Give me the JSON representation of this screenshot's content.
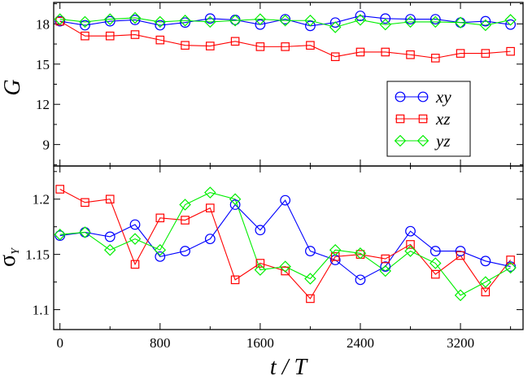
{
  "chart_data": [
    {
      "type": "line",
      "panel": "top",
      "ylabel": "G",
      "xlim": [
        -50,
        3700
      ],
      "ylim": [
        7.4,
        19.6
      ],
      "xticks": [
        0,
        800,
        1600,
        2400,
        3200
      ],
      "yticks": [
        9,
        12,
        15,
        18
      ],
      "x": [
        0,
        200,
        400,
        600,
        800,
        1000,
        1200,
        1400,
        1600,
        1800,
        2000,
        2200,
        2400,
        2600,
        2800,
        3000,
        3200,
        3400,
        3600
      ],
      "series": [
        {
          "name": "xy",
          "color": "#0000ff",
          "marker": "circle",
          "values": [
            18.2,
            17.9,
            18.2,
            18.3,
            17.9,
            18.1,
            18.4,
            18.3,
            17.95,
            18.35,
            17.85,
            18.1,
            18.6,
            18.4,
            18.35,
            18.35,
            18.1,
            18.2,
            17.95
          ]
        },
        {
          "name": "xz",
          "color": "#ff0000",
          "marker": "square",
          "values": [
            18.2,
            17.1,
            17.1,
            17.2,
            16.8,
            16.4,
            16.35,
            16.7,
            16.3,
            16.3,
            16.4,
            15.55,
            15.9,
            15.9,
            15.7,
            15.45,
            15.8,
            15.8,
            15.95
          ]
        },
        {
          "name": "yz",
          "color": "#00ee00",
          "marker": "diamond",
          "values": [
            18.35,
            18.15,
            18.35,
            18.45,
            18.15,
            18.25,
            18.15,
            18.25,
            18.35,
            18.25,
            18.25,
            17.75,
            18.3,
            17.95,
            18.15,
            18.15,
            18.1,
            17.9,
            18.3
          ]
        }
      ],
      "legend": {
        "position": "right-middle",
        "entries": [
          "xy",
          "xz",
          "yz"
        ]
      }
    },
    {
      "type": "line",
      "panel": "bottom",
      "ylabel": "σ",
      "ylabel_sub": "Y",
      "xlabel": "t / T",
      "xlim": [
        -50,
        3700
      ],
      "ylim": [
        1.082,
        1.23
      ],
      "xticks": [
        0,
        800,
        1600,
        2400,
        3200
      ],
      "yticks": [
        1.1,
        1.15,
        1.2
      ],
      "x": [
        0,
        200,
        400,
        600,
        800,
        1000,
        1200,
        1400,
        1600,
        1800,
        2000,
        2200,
        2400,
        2600,
        2800,
        3000,
        3200,
        3400,
        3600
      ],
      "series": [
        {
          "name": "xy",
          "color": "#0000ff",
          "marker": "circle",
          "values": [
            1.167,
            1.17,
            1.166,
            1.177,
            1.148,
            1.153,
            1.164,
            1.195,
            1.172,
            1.199,
            1.153,
            1.145,
            1.127,
            1.139,
            1.171,
            1.153,
            1.153,
            1.144,
            1.139
          ]
        },
        {
          "name": "xz",
          "color": "#ff0000",
          "marker": "square",
          "values": [
            1.209,
            1.197,
            1.2,
            1.141,
            1.183,
            1.181,
            1.192,
            1.127,
            1.142,
            1.135,
            1.11,
            1.148,
            1.15,
            1.146,
            1.159,
            1.132,
            1.149,
            1.116,
            1.145
          ]
        },
        {
          "name": "yz",
          "color": "#00ee00",
          "marker": "diamond",
          "values": [
            1.168,
            1.17,
            1.154,
            1.164,
            1.154,
            1.195,
            1.206,
            1.2,
            1.136,
            1.139,
            1.128,
            1.154,
            1.151,
            1.135,
            1.153,
            1.142,
            1.113,
            1.125,
            1.138
          ]
        }
      ]
    }
  ]
}
